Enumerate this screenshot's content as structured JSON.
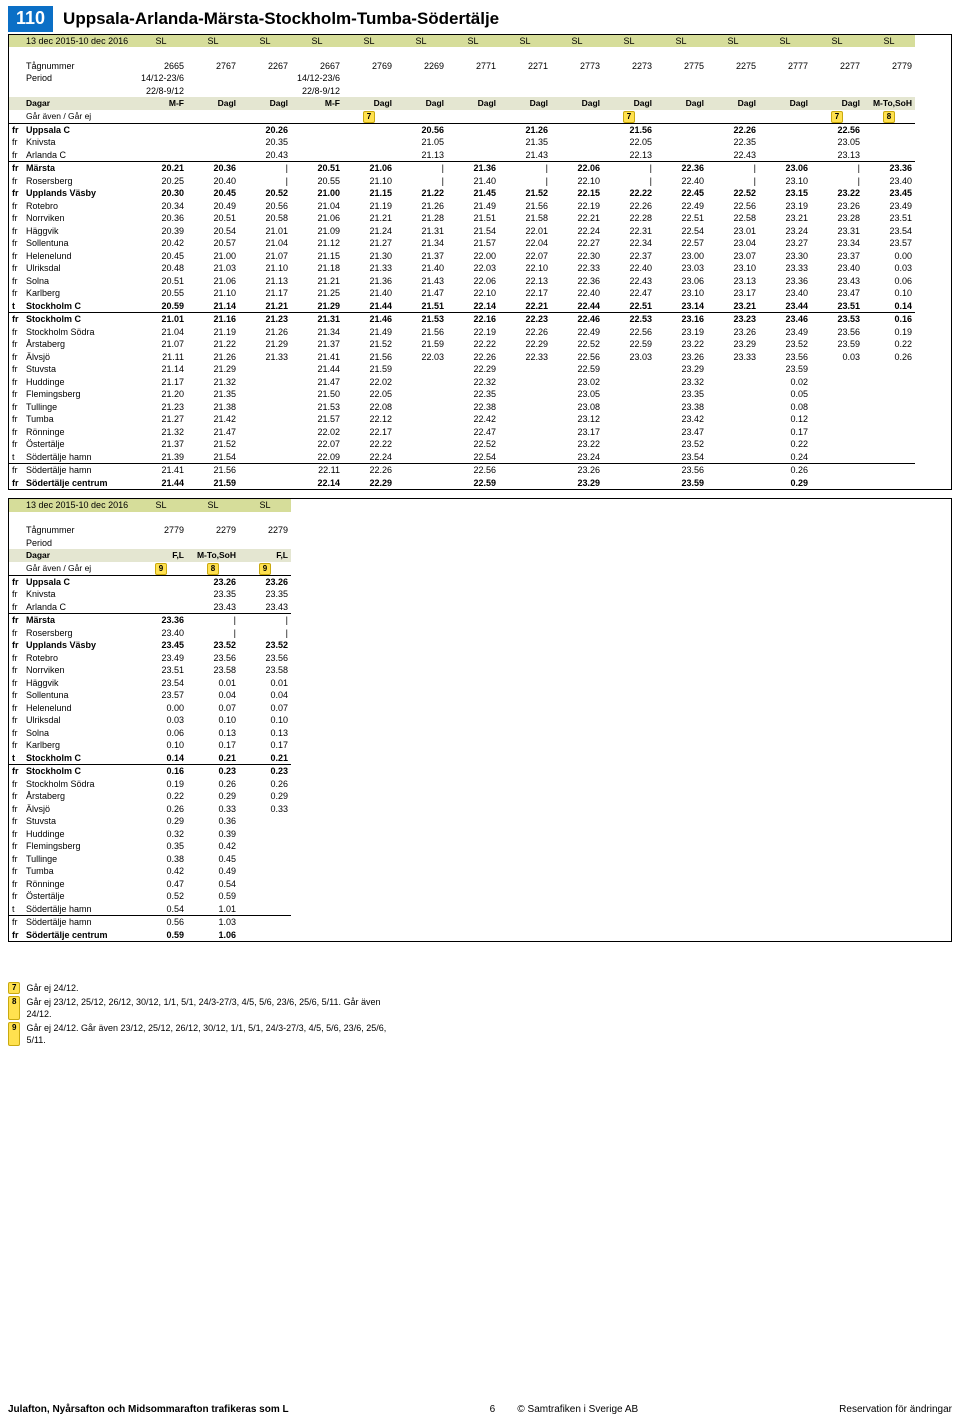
{
  "route_number": "110",
  "route_title": "Uppsala-Arlanda-Märsta-Stockholm-Tumba-Södertälje",
  "date_range": "13 dec 2015-10 dec 2016",
  "labels": {
    "tagnummer": "Tågnummer",
    "period": "Period",
    "dagar": "Dagar",
    "gar": "Går även / Går ej",
    "sl": "SL"
  },
  "stations": [
    {
      "code": "fr",
      "name": "Uppsala C",
      "bold": true,
      "sep": "top"
    },
    {
      "code": "fr",
      "name": "Knivsta"
    },
    {
      "code": "fr",
      "name": "Arlanda C"
    },
    {
      "code": "fr",
      "name": "Märsta",
      "bold": true,
      "sep": "top"
    },
    {
      "code": "fr",
      "name": "Rosersberg"
    },
    {
      "code": "fr",
      "name": "Upplands Väsby",
      "bold": true
    },
    {
      "code": "fr",
      "name": "Rotebro"
    },
    {
      "code": "fr",
      "name": "Norrviken"
    },
    {
      "code": "fr",
      "name": "Häggvik"
    },
    {
      "code": "fr",
      "name": "Sollentuna"
    },
    {
      "code": "fr",
      "name": "Helenelund"
    },
    {
      "code": "fr",
      "name": "Ulriksdal"
    },
    {
      "code": "fr",
      "name": "Solna"
    },
    {
      "code": "fr",
      "name": "Karlberg"
    },
    {
      "code": "t",
      "name": "Stockholm C",
      "bold": true
    },
    {
      "code": "fr",
      "name": "Stockholm C",
      "bold": true,
      "sep": "top"
    },
    {
      "code": "fr",
      "name": "Stockholm Södra"
    },
    {
      "code": "fr",
      "name": "Årstaberg"
    },
    {
      "code": "fr",
      "name": "Älvsjö"
    },
    {
      "code": "fr",
      "name": "Stuvsta"
    },
    {
      "code": "fr",
      "name": "Huddinge"
    },
    {
      "code": "fr",
      "name": "Flemingsberg"
    },
    {
      "code": "fr",
      "name": "Tullinge"
    },
    {
      "code": "fr",
      "name": "Tumba"
    },
    {
      "code": "fr",
      "name": "Rönninge"
    },
    {
      "code": "fr",
      "name": "Östertälje"
    },
    {
      "code": "t",
      "name": "Södertälje hamn"
    },
    {
      "code": "fr",
      "name": "Södertälje hamn",
      "sep": "top"
    },
    {
      "code": "fr",
      "name": "Södertälje centrum",
      "bold": true
    }
  ],
  "table1": {
    "cols": 15,
    "tagnummer": [
      "2665",
      "2767",
      "2267",
      "2667",
      "2769",
      "2269",
      "2771",
      "2271",
      "2773",
      "2273",
      "2775",
      "2275",
      "2777",
      "2277",
      "2779"
    ],
    "period": [
      "14/12-23/6\n22/8-9/12",
      "",
      "",
      "14/12-23/6\n22/8-9/12",
      "",
      "",
      "",
      "",
      "",
      "",
      "",
      "",
      "",
      "",
      ""
    ],
    "dagar": [
      "M-F",
      "Dagl",
      "Dagl",
      "M-F",
      "Dagl",
      "Dagl",
      "Dagl",
      "Dagl",
      "Dagl",
      "Dagl",
      "Dagl",
      "Dagl",
      "Dagl",
      "Dagl",
      "M-To,SoH"
    ],
    "notes": [
      "",
      "",
      "",
      "",
      "7",
      "",
      "",
      "",
      "",
      "7",
      "",
      "",
      "",
      "7",
      "8"
    ],
    "times": [
      [
        "",
        "",
        "20.26",
        "",
        "",
        "20.56",
        "",
        "21.26",
        "",
        "21.56",
        "",
        "22.26",
        "",
        "22.56",
        ""
      ],
      [
        "",
        "",
        "20.35",
        "",
        "",
        "21.05",
        "",
        "21.35",
        "",
        "22.05",
        "",
        "22.35",
        "",
        "23.05",
        ""
      ],
      [
        "",
        "",
        "20.43",
        "",
        "",
        "21.13",
        "",
        "21.43",
        "",
        "22.13",
        "",
        "22.43",
        "",
        "23.13",
        ""
      ],
      [
        "20.21",
        "20.36",
        "|",
        "20.51",
        "21.06",
        "|",
        "21.36",
        "|",
        "22.06",
        "|",
        "22.36",
        "|",
        "23.06",
        "|",
        "23.36"
      ],
      [
        "20.25",
        "20.40",
        "|",
        "20.55",
        "21.10",
        "|",
        "21.40",
        "|",
        "22.10",
        "|",
        "22.40",
        "|",
        "23.10",
        "|",
        "23.40"
      ],
      [
        "20.30",
        "20.45",
        "20.52",
        "21.00",
        "21.15",
        "21.22",
        "21.45",
        "21.52",
        "22.15",
        "22.22",
        "22.45",
        "22.52",
        "23.15",
        "23.22",
        "23.45"
      ],
      [
        "20.34",
        "20.49",
        "20.56",
        "21.04",
        "21.19",
        "21.26",
        "21.49",
        "21.56",
        "22.19",
        "22.26",
        "22.49",
        "22.56",
        "23.19",
        "23.26",
        "23.49"
      ],
      [
        "20.36",
        "20.51",
        "20.58",
        "21.06",
        "21.21",
        "21.28",
        "21.51",
        "21.58",
        "22.21",
        "22.28",
        "22.51",
        "22.58",
        "23.21",
        "23.28",
        "23.51"
      ],
      [
        "20.39",
        "20.54",
        "21.01",
        "21.09",
        "21.24",
        "21.31",
        "21.54",
        "22.01",
        "22.24",
        "22.31",
        "22.54",
        "23.01",
        "23.24",
        "23.31",
        "23.54"
      ],
      [
        "20.42",
        "20.57",
        "21.04",
        "21.12",
        "21.27",
        "21.34",
        "21.57",
        "22.04",
        "22.27",
        "22.34",
        "22.57",
        "23.04",
        "23.27",
        "23.34",
        "23.57"
      ],
      [
        "20.45",
        "21.00",
        "21.07",
        "21.15",
        "21.30",
        "21.37",
        "22.00",
        "22.07",
        "22.30",
        "22.37",
        "23.00",
        "23.07",
        "23.30",
        "23.37",
        "0.00"
      ],
      [
        "20.48",
        "21.03",
        "21.10",
        "21.18",
        "21.33",
        "21.40",
        "22.03",
        "22.10",
        "22.33",
        "22.40",
        "23.03",
        "23.10",
        "23.33",
        "23.40",
        "0.03"
      ],
      [
        "20.51",
        "21.06",
        "21.13",
        "21.21",
        "21.36",
        "21.43",
        "22.06",
        "22.13",
        "22.36",
        "22.43",
        "23.06",
        "23.13",
        "23.36",
        "23.43",
        "0.06"
      ],
      [
        "20.55",
        "21.10",
        "21.17",
        "21.25",
        "21.40",
        "21.47",
        "22.10",
        "22.17",
        "22.40",
        "22.47",
        "23.10",
        "23.17",
        "23.40",
        "23.47",
        "0.10"
      ],
      [
        "20.59",
        "21.14",
        "21.21",
        "21.29",
        "21.44",
        "21.51",
        "22.14",
        "22.21",
        "22.44",
        "22.51",
        "23.14",
        "23.21",
        "23.44",
        "23.51",
        "0.14"
      ],
      [
        "21.01",
        "21.16",
        "21.23",
        "21.31",
        "21.46",
        "21.53",
        "22.16",
        "22.23",
        "22.46",
        "22.53",
        "23.16",
        "23.23",
        "23.46",
        "23.53",
        "0.16"
      ],
      [
        "21.04",
        "21.19",
        "21.26",
        "21.34",
        "21.49",
        "21.56",
        "22.19",
        "22.26",
        "22.49",
        "22.56",
        "23.19",
        "23.26",
        "23.49",
        "23.56",
        "0.19"
      ],
      [
        "21.07",
        "21.22",
        "21.29",
        "21.37",
        "21.52",
        "21.59",
        "22.22",
        "22.29",
        "22.52",
        "22.59",
        "23.22",
        "23.29",
        "23.52",
        "23.59",
        "0.22"
      ],
      [
        "21.11",
        "21.26",
        "21.33",
        "21.41",
        "21.56",
        "22.03",
        "22.26",
        "22.33",
        "22.56",
        "23.03",
        "23.26",
        "23.33",
        "23.56",
        "0.03",
        "0.26"
      ],
      [
        "21.14",
        "21.29",
        "",
        "21.44",
        "21.59",
        "",
        "22.29",
        "",
        "22.59",
        "",
        "23.29",
        "",
        "23.59",
        "",
        ""
      ],
      [
        "21.17",
        "21.32",
        "",
        "21.47",
        "22.02",
        "",
        "22.32",
        "",
        "23.02",
        "",
        "23.32",
        "",
        "0.02",
        "",
        ""
      ],
      [
        "21.20",
        "21.35",
        "",
        "21.50",
        "22.05",
        "",
        "22.35",
        "",
        "23.05",
        "",
        "23.35",
        "",
        "0.05",
        "",
        ""
      ],
      [
        "21.23",
        "21.38",
        "",
        "21.53",
        "22.08",
        "",
        "22.38",
        "",
        "23.08",
        "",
        "23.38",
        "",
        "0.08",
        "",
        ""
      ],
      [
        "21.27",
        "21.42",
        "",
        "21.57",
        "22.12",
        "",
        "22.42",
        "",
        "23.12",
        "",
        "23.42",
        "",
        "0.12",
        "",
        ""
      ],
      [
        "21.32",
        "21.47",
        "",
        "22.02",
        "22.17",
        "",
        "22.47",
        "",
        "23.17",
        "",
        "23.47",
        "",
        "0.17",
        "",
        ""
      ],
      [
        "21.37",
        "21.52",
        "",
        "22.07",
        "22.22",
        "",
        "22.52",
        "",
        "23.22",
        "",
        "23.52",
        "",
        "0.22",
        "",
        ""
      ],
      [
        "21.39",
        "21.54",
        "",
        "22.09",
        "22.24",
        "",
        "22.54",
        "",
        "23.24",
        "",
        "23.54",
        "",
        "0.24",
        "",
        ""
      ],
      [
        "21.41",
        "21.56",
        "",
        "22.11",
        "22.26",
        "",
        "22.56",
        "",
        "23.26",
        "",
        "23.56",
        "",
        "0.26",
        "",
        ""
      ],
      [
        "21.44",
        "21.59",
        "",
        "22.14",
        "22.29",
        "",
        "22.59",
        "",
        "23.29",
        "",
        "23.59",
        "",
        "0.29",
        "",
        ""
      ]
    ]
  },
  "table2": {
    "cols": 3,
    "tagnummer": [
      "2779",
      "2279",
      "2279"
    ],
    "period": [
      "",
      "",
      ""
    ],
    "dagar": [
      "F,L",
      "M-To,SoH",
      "F,L"
    ],
    "notes": [
      "9",
      "8",
      "9"
    ],
    "times": [
      [
        "",
        "23.26",
        "23.26"
      ],
      [
        "",
        "23.35",
        "23.35"
      ],
      [
        "",
        "23.43",
        "23.43"
      ],
      [
        "23.36",
        "|",
        "|"
      ],
      [
        "23.40",
        "|",
        "|"
      ],
      [
        "23.45",
        "23.52",
        "23.52"
      ],
      [
        "23.49",
        "23.56",
        "23.56"
      ],
      [
        "23.51",
        "23.58",
        "23.58"
      ],
      [
        "23.54",
        "0.01",
        "0.01"
      ],
      [
        "23.57",
        "0.04",
        "0.04"
      ],
      [
        "0.00",
        "0.07",
        "0.07"
      ],
      [
        "0.03",
        "0.10",
        "0.10"
      ],
      [
        "0.06",
        "0.13",
        "0.13"
      ],
      [
        "0.10",
        "0.17",
        "0.17"
      ],
      [
        "0.14",
        "0.21",
        "0.21"
      ],
      [
        "0.16",
        "0.23",
        "0.23"
      ],
      [
        "0.19",
        "0.26",
        "0.26"
      ],
      [
        "0.22",
        "0.29",
        "0.29"
      ],
      [
        "0.26",
        "0.33",
        "0.33"
      ],
      [
        "0.29",
        "0.36",
        ""
      ],
      [
        "0.32",
        "0.39",
        ""
      ],
      [
        "0.35",
        "0.42",
        ""
      ],
      [
        "0.38",
        "0.45",
        ""
      ],
      [
        "0.42",
        "0.49",
        ""
      ],
      [
        "0.47",
        "0.54",
        ""
      ],
      [
        "0.52",
        "0.59",
        ""
      ],
      [
        "0.54",
        "1.01",
        ""
      ],
      [
        "0.56",
        "1.03",
        ""
      ],
      [
        "0.59",
        "1.06",
        ""
      ]
    ]
  },
  "footnotes": [
    {
      "n": "7",
      "text": "Går ej 24/12."
    },
    {
      "n": "8",
      "text": "Går ej 23/12, 25/12, 26/12, 30/12, 1/1, 5/1, 24/3-27/3, 4/5, 5/6, 23/6, 25/6, 5/11. Går även 24/12."
    },
    {
      "n": "9",
      "text": "Går ej 24/12. Går även 23/12, 25/12, 26/12, 30/12, 1/1, 5/1, 24/3-27/3, 4/5, 5/6, 23/6, 25/6, 5/11."
    }
  ],
  "footer": {
    "left": "Julafton, Nyårsafton och Midsommarafton trafikeras som L",
    "center_page": "6",
    "center_copy": "© Samtrafiken i Sverige AB",
    "right": "Reservation för ändringar"
  }
}
